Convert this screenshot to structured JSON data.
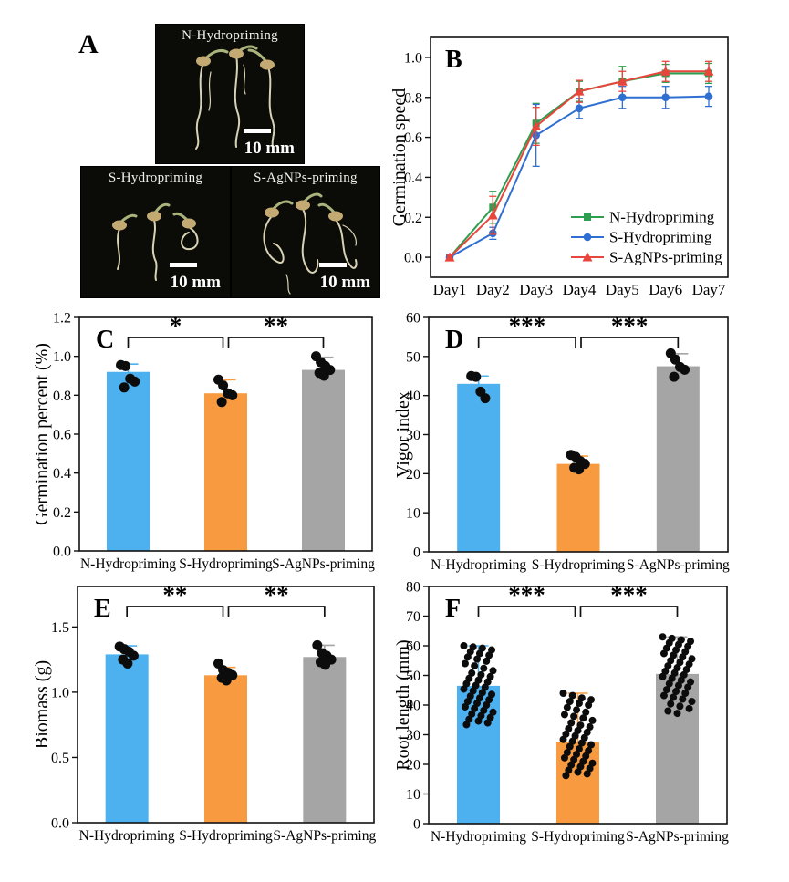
{
  "panelA": {
    "label": "A",
    "photos": [
      {
        "name": "N-Hydropriming",
        "scale_label": "10 mm"
      },
      {
        "name": "S-Hydropriming",
        "scale_label": "10 mm"
      },
      {
        "name": "S-AgNPs-priming",
        "scale_label": "10 mm"
      }
    ]
  },
  "colors": {
    "bar_blue": "#4DB1EF",
    "bar_orange": "#F89B40",
    "bar_gray": "#A5A5A5",
    "line_green": "#2E9E50",
    "line_blue": "#2F6FD1",
    "line_red": "#E8453C",
    "dot_black": "#0c0c0c"
  },
  "chart_data": [
    {
      "panel": "B",
      "type": "line",
      "x": [
        "Day1",
        "Day2",
        "Day3",
        "Day4",
        "Day5",
        "Day6",
        "Day7"
      ],
      "ylabel": "Germination speed",
      "ylim": [
        -0.1,
        1.1
      ],
      "yticks": [
        0,
        0.2,
        0.4,
        0.6,
        0.8,
        1.0
      ],
      "ydec": 1,
      "legend_position": "bottom-right",
      "series": [
        {
          "name": "N-Hydropriming",
          "color": "#2E9E50",
          "marker": "square",
          "values": [
            0,
            0.25,
            0.67,
            0.83,
            0.88,
            0.92,
            0.92
          ],
          "errors": [
            0.01,
            0.08,
            0.1,
            0.05,
            0.075,
            0.045,
            0.05
          ]
        },
        {
          "name": "S-Hydropriming",
          "color": "#2F6FD1",
          "marker": "circle",
          "values": [
            0,
            0.12,
            0.61,
            0.745,
            0.8,
            0.8,
            0.805
          ],
          "errors": [
            0.01,
            0.03,
            0.155,
            0.05,
            0.055,
            0.055,
            0.05
          ]
        },
        {
          "name": "S-AgNPs-priming",
          "color": "#E8453C",
          "marker": "triangle",
          "values": [
            0,
            0.21,
            0.655,
            0.83,
            0.88,
            0.93,
            0.93
          ],
          "errors": [
            0.01,
            0.095,
            0.095,
            0.055,
            0.05,
            0.05,
            0.05
          ]
        }
      ]
    },
    {
      "panel": "C",
      "type": "bar",
      "categories": [
        "N-Hydropriming",
        "S-Hydropriming",
        "S-AgNPs-priming"
      ],
      "values": [
        0.92,
        0.81,
        0.93
      ],
      "errors": [
        0.04,
        0.07,
        0.065
      ],
      "bar_colors": [
        "#4DB1EF",
        "#F89B40",
        "#A5A5A5"
      ],
      "ylabel": "Germination percent (%)",
      "ylim": [
        0,
        1.2
      ],
      "yticks": [
        0,
        0.2,
        0.4,
        0.6,
        0.8,
        1.0,
        1.2
      ],
      "ydec": 1,
      "significance": [
        {
          "between": [
            0,
            1
          ],
          "label": "*"
        },
        {
          "between": [
            1,
            2
          ],
          "label": "**"
        }
      ],
      "points": [
        [
          0.955,
          0.95,
          0.885,
          0.87,
          0.84
        ],
        [
          0.88,
          0.85,
          0.81,
          0.8,
          0.765
        ],
        [
          1.0,
          0.97,
          0.95,
          0.93,
          0.915,
          0.9
        ]
      ],
      "dot_r": 5.5,
      "jitter": 8
    },
    {
      "panel": "D",
      "type": "bar",
      "categories": [
        "N-Hydropriming",
        "S-Hydropriming",
        "S-AgNPs-priming"
      ],
      "values": [
        43,
        22.5,
        47.5
      ],
      "errors": [
        2,
        2,
        3.2
      ],
      "bar_colors": [
        "#4DB1EF",
        "#F89B40",
        "#A5A5A5"
      ],
      "ylabel": "Vigor index",
      "ylim": [
        0,
        60
      ],
      "yticks": [
        0,
        10,
        20,
        30,
        40,
        50,
        60
      ],
      "ydec": 0,
      "significance": [
        {
          "between": [
            0,
            1
          ],
          "label": "***"
        },
        {
          "between": [
            1,
            2
          ],
          "label": "***"
        }
      ],
      "points": [
        [
          45,
          44.8,
          41,
          39.3
        ],
        [
          24.8,
          24.3,
          23.2,
          22.5,
          21.5,
          21.1
        ],
        [
          50.8,
          49.2,
          47.3,
          46.6,
          44.8
        ]
      ],
      "dot_r": 5.5,
      "jitter": 8
    },
    {
      "panel": "E",
      "type": "bar",
      "categories": [
        "N-Hydropriming",
        "S-Hydropriming",
        "S-AgNPs-priming"
      ],
      "values": [
        1.29,
        1.13,
        1.27
      ],
      "errors": [
        0.065,
        0.06,
        0.09
      ],
      "bar_colors": [
        "#4DB1EF",
        "#F89B40",
        "#A5A5A5"
      ],
      "ylabel": "Biomass (g)",
      "ylim": [
        0,
        1.81
      ],
      "yticks": [
        0,
        0.5,
        1.0,
        1.5
      ],
      "ydec": 1,
      "significance": [
        {
          "between": [
            0,
            1
          ],
          "label": "**"
        },
        {
          "between": [
            1,
            2
          ],
          "label": "**"
        }
      ],
      "points": [
        [
          1.35,
          1.33,
          1.31,
          1.28,
          1.25,
          1.22
        ],
        [
          1.22,
          1.17,
          1.15,
          1.13,
          1.11,
          1.09
        ],
        [
          1.36,
          1.3,
          1.28,
          1.25,
          1.23,
          1.21
        ]
      ],
      "dot_r": 5.5,
      "jitter": 8
    },
    {
      "panel": "F",
      "type": "bar",
      "categories": [
        "N-Hydropriming",
        "S-Hydropriming",
        "S-AgNPs-priming"
      ],
      "values": [
        46.5,
        27.5,
        50.5
      ],
      "errors": [
        13.5,
        16.5,
        12.5
      ],
      "bar_colors": [
        "#4DB1EF",
        "#F89B40",
        "#A5A5A5"
      ],
      "ylabel": "Root length (mm)",
      "ylim": [
        0,
        80
      ],
      "yticks": [
        0,
        10,
        20,
        30,
        40,
        50,
        60,
        70,
        80
      ],
      "ydec": 0,
      "significance": [
        {
          "between": [
            0,
            1
          ],
          "label": "***"
        },
        {
          "between": [
            1,
            2
          ],
          "label": "***"
        }
      ],
      "points": [
        [
          60,
          59.6,
          59.2,
          58.6,
          58,
          57.4,
          56.8,
          56.2,
          55.5,
          54.8,
          54,
          53.2,
          52.4,
          51.6,
          50.8,
          50.2,
          49.6,
          49,
          48.4,
          47.8,
          47.2,
          46.6,
          46,
          45.4,
          44.8,
          44.2,
          43.6,
          43,
          42.4,
          41.8,
          41.2,
          40.6,
          40,
          39.4,
          38.8,
          38.2,
          37.6,
          37,
          36.4,
          35.8,
          35.2,
          34.6,
          34,
          33.4
        ],
        [
          44,
          43.2,
          42.4,
          41.8,
          41.2,
          40.6,
          40,
          39.2,
          38.4,
          37.6,
          36.8,
          36.2,
          35.6,
          34.8,
          34,
          33.2,
          32.6,
          32,
          31.4,
          30.8,
          30.2,
          29.6,
          29,
          28.4,
          27.8,
          27.2,
          26.6,
          26,
          25.2,
          24.6,
          24,
          23.4,
          22.8,
          22.2,
          21.6,
          21,
          20.4,
          19.8,
          19.2,
          18.6,
          18,
          17.4,
          16.8,
          16.2
        ],
        [
          63,
          62.5,
          62,
          61.5,
          61,
          60.4,
          59.8,
          59.2,
          58.6,
          58,
          57.4,
          56.8,
          56.2,
          55.6,
          55,
          54.4,
          53.8,
          53.2,
          52.6,
          52,
          51.4,
          50.8,
          50.2,
          49.6,
          49,
          48.4,
          47.8,
          47.2,
          46.6,
          46,
          45.2,
          44.6,
          44,
          43.2,
          42.6,
          42,
          41.2,
          40.4,
          39.6,
          38.8,
          38,
          37.2
        ]
      ],
      "dot_r": 4,
      "jitter": 16
    }
  ]
}
